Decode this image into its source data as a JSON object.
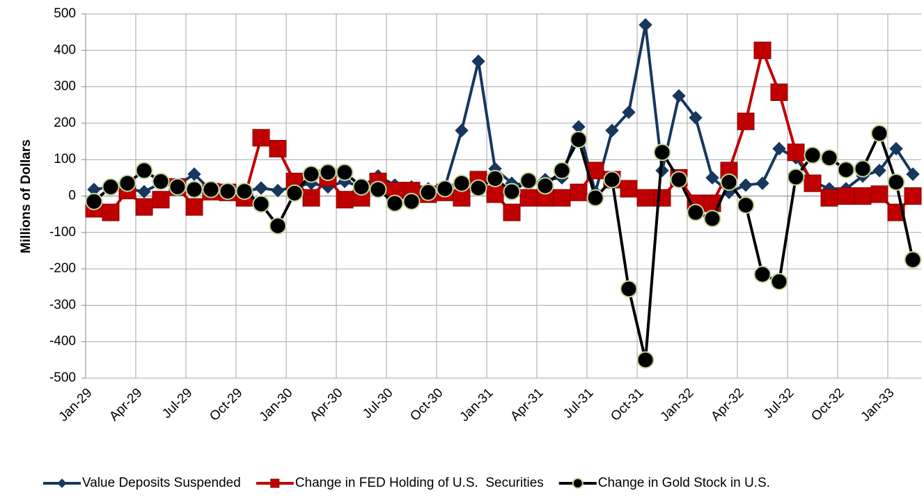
{
  "chart_data": {
    "type": "line",
    "y_label": "Millions of Dollars",
    "categories": [
      "Jan-29",
      null,
      null,
      "Apr-29",
      null,
      null,
      "Jul-29",
      null,
      null,
      "Oct-29",
      null,
      null,
      "Jan-30",
      null,
      null,
      "Apr-30",
      null,
      null,
      "Jul-30",
      null,
      null,
      "Oct-30",
      null,
      null,
      "Jan-31",
      null,
      null,
      "Apr-31",
      null,
      null,
      "Jul-31",
      null,
      null,
      "Oct-31",
      null,
      null,
      "Jan-32",
      null,
      null,
      "Apr-32",
      null,
      null,
      "Jul-32",
      null,
      null,
      "Oct-32",
      null,
      null,
      "Jan-33",
      null
    ],
    "series": [
      {
        "name": "Value Deposits Suspended",
        "color": "#17375e",
        "marker": "diamond",
        "values": [
          18,
          25,
          20,
          12,
          35,
          30,
          60,
          15,
          15,
          12,
          22,
          15,
          25,
          35,
          25,
          40,
          25,
          55,
          30,
          25,
          20,
          25,
          180,
          370,
          75,
          35,
          30,
          45,
          50,
          190,
          10,
          180,
          230,
          470,
          70,
          275,
          215,
          50,
          10,
          30,
          35,
          130,
          105,
          40,
          20,
          20,
          55,
          70,
          130,
          60
        ]
      },
      {
        "name": "Change in FED Holding of U.S.  Securities",
        "color": "#c00000",
        "marker": "square",
        "values": [
          -35,
          -45,
          15,
          -30,
          -10,
          25,
          -30,
          12,
          10,
          -5,
          160,
          130,
          40,
          -5,
          50,
          -10,
          -5,
          40,
          15,
          15,
          5,
          10,
          -5,
          45,
          5,
          -45,
          -5,
          -5,
          -5,
          10,
          70,
          45,
          20,
          -5,
          -5,
          50,
          -20,
          -20,
          70,
          205,
          400,
          285,
          120,
          35,
          -5,
          0,
          0,
          5,
          -45,
          0
        ]
      },
      {
        "name": "Change in Gold Stock in U.S.",
        "color": "#000000",
        "marker": "circle",
        "values": [
          -15,
          25,
          35,
          70,
          40,
          25,
          18,
          18,
          13,
          13,
          -22,
          -82,
          8,
          60,
          65,
          65,
          25,
          18,
          -20,
          -15,
          10,
          20,
          35,
          22,
          48,
          12,
          42,
          28,
          70,
          155,
          -5,
          45,
          -255,
          -450,
          120,
          45,
          -45,
          -62,
          38,
          -25,
          -215,
          -235,
          52,
          112,
          105,
          72,
          75,
          172,
          38,
          -175
        ]
      }
    ],
    "ylim": [
      -500,
      500
    ],
    "yticks": [
      -500,
      -400,
      -300,
      -200,
      -100,
      0,
      100,
      200,
      300,
      400,
      500
    ],
    "grid": true,
    "legend": "bottom"
  }
}
